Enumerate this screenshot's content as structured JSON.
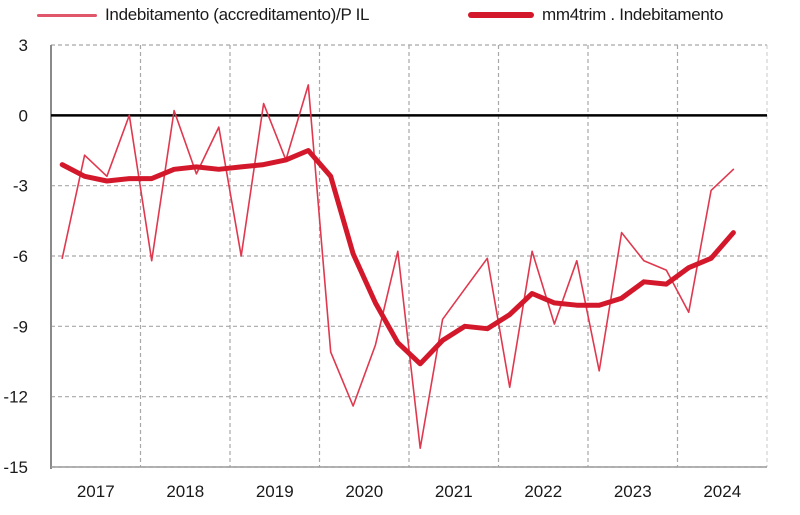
{
  "chart_data": {
    "type": "line",
    "title": "",
    "xlabel": "",
    "ylabel": "",
    "ylim": [
      -15,
      3
    ],
    "yticks": [
      3,
      0,
      -3,
      -6,
      -9,
      -12,
      -15
    ],
    "ytick_labels": [
      "3",
      "0",
      "-3",
      "-6",
      "-9",
      "-12",
      "-15"
    ],
    "xtick_labels": [
      "2017",
      "2018",
      "2019",
      "2020",
      "2021",
      "2022",
      "2023",
      "2024"
    ],
    "grid": true,
    "zero_line": true,
    "legend_position": "top",
    "x": [
      "2017Q1",
      "2017Q2",
      "2017Q3",
      "2017Q4",
      "2018Q1",
      "2018Q2",
      "2018Q3",
      "2018Q4",
      "2019Q1",
      "2019Q2",
      "2019Q3",
      "2019Q4",
      "2020Q1",
      "2020Q2",
      "2020Q3",
      "2020Q4",
      "2021Q1",
      "2021Q2",
      "2021Q3",
      "2021Q4",
      "2022Q1",
      "2022Q2",
      "2022Q3",
      "2022Q4",
      "2023Q1",
      "2023Q2",
      "2023Q3",
      "2023Q4",
      "2024Q1",
      "2024Q2",
      "2024Q3"
    ],
    "series": [
      {
        "name": "Indebitamento (accreditamento)/P IL",
        "color": "#e0384e",
        "line_width": 1.6,
        "values": [
          -6.1,
          -1.7,
          -2.6,
          0.0,
          -6.2,
          0.2,
          -2.5,
          -0.5,
          -6.0,
          0.5,
          -1.9,
          1.3,
          -10.1,
          -12.4,
          -9.8,
          -5.8,
          -14.2,
          -8.7,
          -7.4,
          -6.1,
          -11.6,
          -5.8,
          -8.9,
          -6.2,
          -10.9,
          -5.0,
          -6.2,
          -6.6,
          -8.4,
          -3.2,
          -2.3
        ]
      },
      {
        "name": "mm4trim . Indebitamento",
        "color": "#d4182b",
        "line_width": 5,
        "values": [
          -2.1,
          -2.6,
          -2.8,
          -2.7,
          -2.7,
          -2.3,
          -2.2,
          -2.3,
          -2.2,
          -2.1,
          -1.9,
          -1.5,
          -2.6,
          -5.9,
          -8.0,
          -9.7,
          -10.6,
          -9.6,
          -9.0,
          -9.1,
          -8.5,
          -7.6,
          -8.0,
          -8.1,
          -8.1,
          -7.8,
          -7.1,
          -7.2,
          -6.5,
          -6.1,
          -5.0
        ]
      }
    ]
  },
  "legend": {
    "items": [
      {
        "label": "Indebitamento (accreditamento)/P IL",
        "color": "#e0566a"
      },
      {
        "label": "mm4trim . Indebitamento",
        "color": "#d4182b"
      }
    ]
  }
}
